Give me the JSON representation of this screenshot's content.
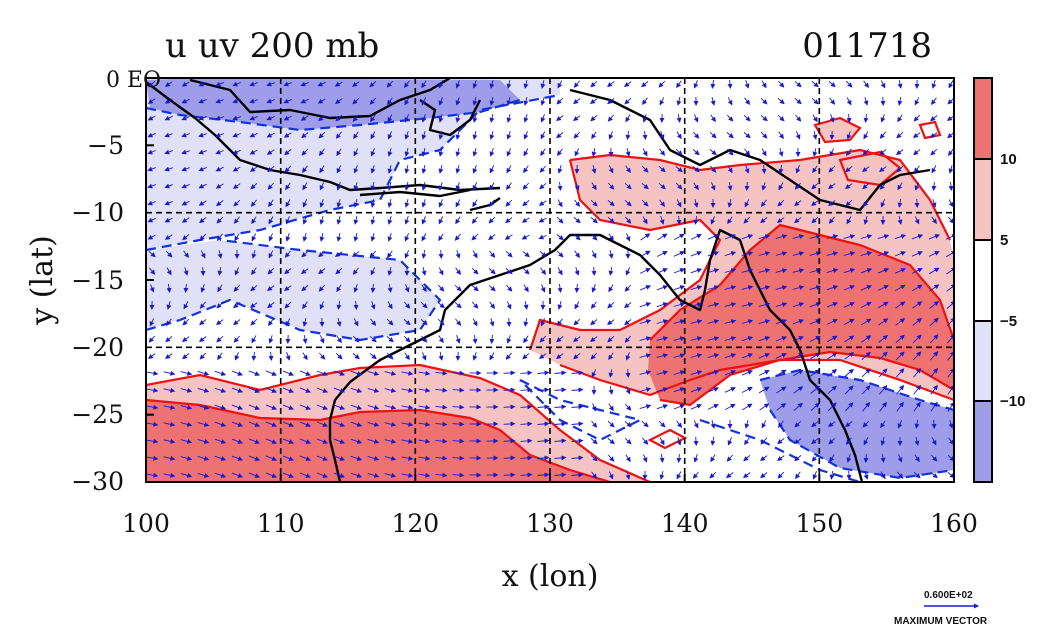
{
  "chart_data": {
    "type": "heatmap",
    "title": "u uv 200 mb",
    "subtitle": "011718",
    "xlabel": "x (lon)",
    "ylabel": "y (lat)",
    "xlim": [
      100,
      160
    ],
    "ylim": [
      -30,
      0
    ],
    "x_ticks": [
      "100",
      "110",
      "120",
      "130",
      "140",
      "150",
      "160"
    ],
    "y_ticks": [
      "0 EQ",
      "−5",
      "−10",
      "−15",
      "−20",
      "−25",
      "−30"
    ],
    "grid": true,
    "colorbar": {
      "labels": [
        "10",
        "5",
        "−5",
        "−10"
      ],
      "levels": [
        10,
        5,
        -5,
        -10
      ],
      "bands": [
        {
          "range": "> 10",
          "color": "#ef7272"
        },
        {
          "range": "5 to 10",
          "color": "#f6c3c3"
        },
        {
          "range": "-5 to 5",
          "color": "#ffffff"
        },
        {
          "range": "-10 to -5",
          "color": "#e0e0f6"
        },
        {
          "range": "< -10",
          "color": "#9d9dea"
        }
      ]
    },
    "reference_vector": {
      "value_label": "0.600E+02",
      "caption": "MAXIMUM VECTOR"
    },
    "colors": {
      "positive_contour": "#ee1111",
      "negative_contour": "#1133dd",
      "vectors": "#1a1acc",
      "coast": "#000000"
    }
  }
}
